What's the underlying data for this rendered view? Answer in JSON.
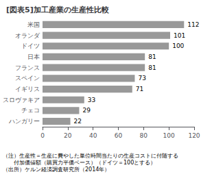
{
  "chart_data": {
    "type": "bar",
    "orientation": "horizontal",
    "title": "[図表5]加工産業の生産性比較",
    "categories": [
      "ハンガリー",
      "チェコ",
      "スロヴァキア",
      "イギリス",
      "スペイン",
      "フランス",
      "日本",
      "ドイツ",
      "オランダ",
      "米国"
    ],
    "values": [
      22,
      29,
      33,
      71,
      73,
      81,
      81,
      100,
      101,
      112
    ],
    "color": "#999999",
    "xlim": [
      0,
      120
    ],
    "xticks": [
      0,
      20,
      40,
      60,
      80,
      100,
      120
    ],
    "grid": false,
    "data_labels": true,
    "annotations": [
      "（注）生産性＝生産に費やした単位時間当たりの生産コストに付随する",
      "　　付加価値額（購買力平価ベース）（ドイツ＝100とする）",
      "（出所）ケルン経済調査研究所（2014年）"
    ]
  }
}
